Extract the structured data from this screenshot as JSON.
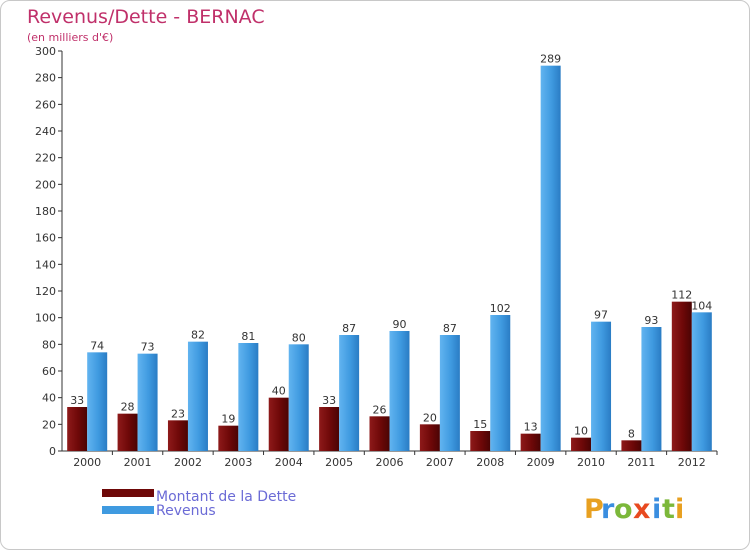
{
  "chart_data": {
    "type": "bar",
    "title": "Revenus/Dette - BERNAC",
    "subtitle": "(en milliers d'€)",
    "categories": [
      "2000",
      "2001",
      "2002",
      "2003",
      "2004",
      "2005",
      "2006",
      "2007",
      "2008",
      "2009",
      "2010",
      "2011",
      "2012"
    ],
    "series": [
      {
        "name": "Montant de la Dette",
        "color": "#7a0a0a",
        "values": [
          33,
          28,
          23,
          19,
          40,
          33,
          26,
          20,
          15,
          13,
          10,
          8,
          112
        ]
      },
      {
        "name": "Revenus",
        "color": "#3f9ae0",
        "values": [
          74,
          73,
          82,
          81,
          80,
          87,
          90,
          87,
          102,
          289,
          97,
          93,
          104
        ]
      }
    ],
    "ylim": [
      0,
      300
    ],
    "yticks": [
      0,
      20,
      40,
      60,
      80,
      100,
      120,
      140,
      160,
      180,
      200,
      220,
      240,
      260,
      280,
      300
    ],
    "grid": false,
    "legend_position": "bottom-left",
    "title_color": "#c0306a"
  },
  "logo": {
    "text": "Proxiti"
  }
}
